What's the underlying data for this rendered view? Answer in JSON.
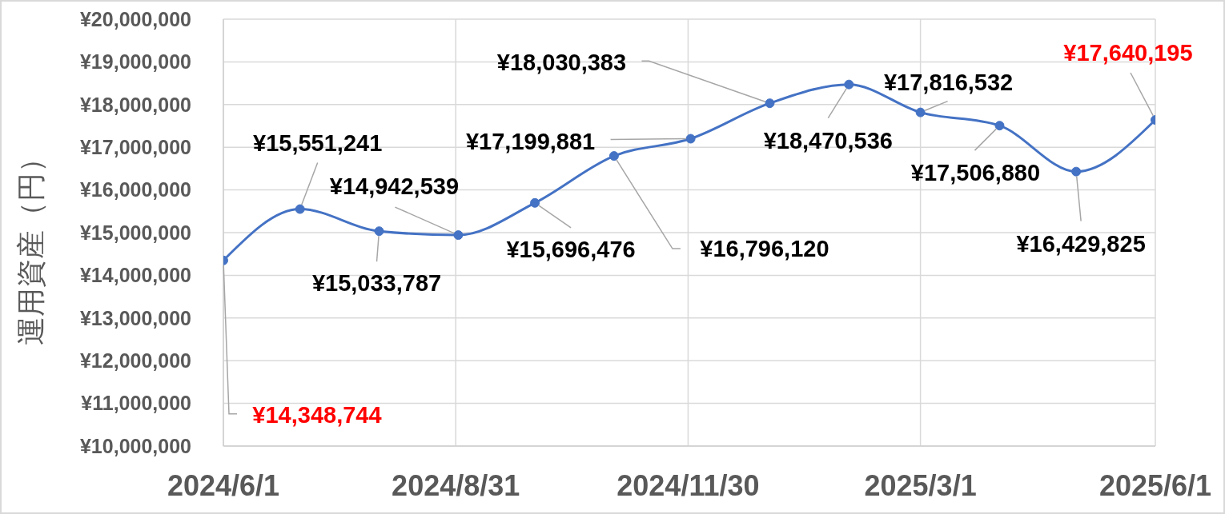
{
  "chart_data": {
    "type": "line",
    "ylabel": "運用資産（円）",
    "x": [
      "2024-06-01",
      "2024-07-01",
      "2024-08-01",
      "2024-09-01",
      "2024-10-01",
      "2024-11-01",
      "2024-12-01",
      "2025-01-01",
      "2025-02-01",
      "2025-03-01",
      "2025-04-01",
      "2025-05-01",
      "2025-06-01"
    ],
    "series": [
      {
        "color": "#4472c4",
        "values": [
          14348744,
          15551241,
          15033787,
          14942539,
          15696476,
          16796120,
          17199881,
          18030383,
          18470536,
          17816532,
          17506880,
          16429825,
          17640195
        ],
        "value_labels": [
          "¥14,348,744",
          "¥15,551,241",
          "¥15,033,787",
          "¥14,942,539",
          "¥15,696,476",
          "¥16,796,120",
          "¥17,199,881",
          "¥18,030,383",
          "¥18,470,536",
          "¥17,816,532",
          "¥17,506,880",
          "¥16,429,825",
          "¥17,640,195"
        ]
      }
    ],
    "xlim": [
      "2024-06-01",
      "2025-06-01"
    ],
    "xticks": [
      {
        "value": "2024-06-01",
        "label": "2024/6/1"
      },
      {
        "value": "2024-08-31",
        "label": "2024/8/31"
      },
      {
        "value": "2024-11-30",
        "label": "2024/11/30"
      },
      {
        "value": "2025-03-01",
        "label": "2025/3/1"
      },
      {
        "value": "2025-06-01",
        "label": "2025/6/1"
      }
    ],
    "ylim": [
      10000000,
      20000000
    ],
    "yticks": [
      {
        "value": 10000000,
        "label": "¥10,000,000"
      },
      {
        "value": 11000000,
        "label": "¥11,000,000"
      },
      {
        "value": 12000000,
        "label": "¥12,000,000"
      },
      {
        "value": 13000000,
        "label": "¥13,000,000"
      },
      {
        "value": 14000000,
        "label": "¥14,000,000"
      },
      {
        "value": 15000000,
        "label": "¥15,000,000"
      },
      {
        "value": 16000000,
        "label": "¥16,000,000"
      },
      {
        "value": 17000000,
        "label": "¥17,000,000"
      },
      {
        "value": 18000000,
        "label": "¥18,000,000"
      },
      {
        "value": 19000000,
        "label": "¥19,000,000"
      },
      {
        "value": 20000000,
        "label": "¥20,000,000"
      }
    ],
    "grid": true,
    "marker": "circle",
    "line_style": "solid"
  }
}
